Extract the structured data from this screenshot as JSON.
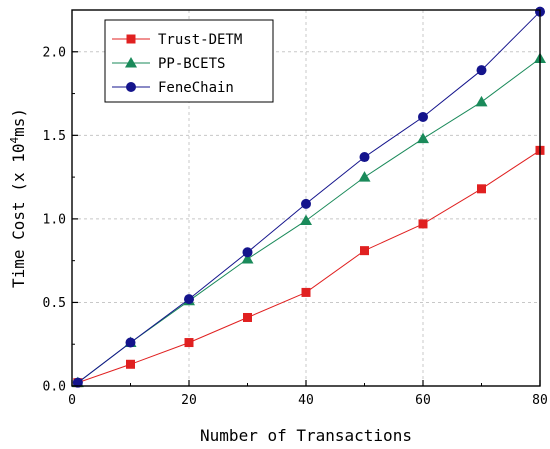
{
  "chart_data": {
    "type": "line",
    "xlabel": "Number of Transactions",
    "ylabel_main": "Time Cost (x 10",
    "ylabel_sup": "4",
    "ylabel_end": "ms)",
    "xlim": [
      0,
      80
    ],
    "ylim": [
      0,
      2.25
    ],
    "xticks": [
      0,
      20,
      40,
      60,
      80
    ],
    "yticks": [
      0.0,
      0.5,
      1.0,
      1.5,
      2.0
    ],
    "ytick_labels": [
      "0.0",
      "0.5",
      "1.0",
      "1.5",
      "2.0"
    ],
    "grid": true,
    "legend_position": "top-left",
    "series": [
      {
        "name": "Trust-DETM",
        "color": "#e02020",
        "marker": "square",
        "x": [
          1,
          10,
          20,
          30,
          40,
          50,
          60,
          70,
          80
        ],
        "y": [
          0.02,
          0.13,
          0.26,
          0.41,
          0.56,
          0.81,
          0.97,
          1.18,
          1.41
        ]
      },
      {
        "name": "PP-BCETS",
        "color": "#1a8a5a",
        "marker": "triangle",
        "x": [
          1,
          10,
          20,
          30,
          40,
          50,
          60,
          70,
          80
        ],
        "y": [
          0.02,
          0.26,
          0.51,
          0.76,
          0.99,
          1.25,
          1.48,
          1.7,
          1.96
        ]
      },
      {
        "name": "FeneChain",
        "color": "#14148c",
        "marker": "circle",
        "x": [
          1,
          10,
          20,
          30,
          40,
          50,
          60,
          70,
          80
        ],
        "y": [
          0.02,
          0.26,
          0.52,
          0.8,
          1.09,
          1.37,
          1.61,
          1.89,
          2.24
        ]
      }
    ]
  }
}
